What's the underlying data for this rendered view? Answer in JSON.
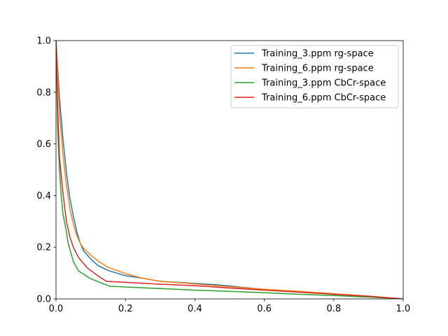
{
  "chart_data": {
    "type": "line",
    "title": "",
    "xlabel": "",
    "ylabel": "",
    "xlim": [
      0.0,
      1.0
    ],
    "ylim": [
      0.0,
      1.0
    ],
    "xticks": [
      "0.0",
      "0.2",
      "0.4",
      "0.6",
      "0.8",
      "1.0"
    ],
    "yticks": [
      "0.0",
      "0.2",
      "0.4",
      "0.6",
      "0.8",
      "1.0"
    ],
    "grid": false,
    "legend_position": "top-right",
    "series": [
      {
        "name": "Training_3.ppm rg-space",
        "color": "#1f77b4",
        "points": [
          [
            0.0,
            1.0
          ],
          [
            0.01,
            0.78
          ],
          [
            0.02,
            0.62
          ],
          [
            0.03,
            0.49
          ],
          [
            0.04,
            0.39
          ],
          [
            0.05,
            0.32
          ],
          [
            0.06,
            0.26
          ],
          [
            0.07,
            0.215
          ],
          [
            0.08,
            0.185
          ],
          [
            0.1,
            0.155
          ],
          [
            0.12,
            0.13
          ],
          [
            0.15,
            0.11
          ],
          [
            0.2,
            0.09
          ],
          [
            0.25,
            0.08
          ],
          [
            0.3,
            0.068
          ],
          [
            0.35,
            0.064
          ],
          [
            0.4,
            0.06
          ],
          [
            0.45,
            0.056
          ],
          [
            0.5,
            0.05
          ],
          [
            0.55,
            0.043
          ],
          [
            0.6,
            0.037
          ],
          [
            0.7,
            0.027
          ],
          [
            0.8,
            0.018
          ],
          [
            0.9,
            0.01
          ],
          [
            1.0,
            0.0
          ]
        ]
      },
      {
        "name": "Training_6.ppm rg-space",
        "color": "#ff7f0e",
        "points": [
          [
            0.0,
            1.0
          ],
          [
            0.01,
            0.72
          ],
          [
            0.02,
            0.56
          ],
          [
            0.03,
            0.44
          ],
          [
            0.04,
            0.35
          ],
          [
            0.05,
            0.29
          ],
          [
            0.06,
            0.245
          ],
          [
            0.07,
            0.215
          ],
          [
            0.08,
            0.195
          ],
          [
            0.1,
            0.17
          ],
          [
            0.12,
            0.148
          ],
          [
            0.15,
            0.122
          ],
          [
            0.2,
            0.098
          ],
          [
            0.25,
            0.08
          ],
          [
            0.3,
            0.068
          ],
          [
            0.35,
            0.063
          ],
          [
            0.4,
            0.058
          ],
          [
            0.45,
            0.052
          ],
          [
            0.5,
            0.047
          ],
          [
            0.55,
            0.042
          ],
          [
            0.6,
            0.037
          ],
          [
            0.7,
            0.029
          ],
          [
            0.8,
            0.02
          ],
          [
            0.9,
            0.011
          ],
          [
            1.0,
            0.0
          ]
        ]
      },
      {
        "name": "Training_3.ppm CbCr-space",
        "color": "#2ca02c",
        "points": [
          [
            0.0,
            1.0
          ],
          [
            0.005,
            0.65
          ],
          [
            0.01,
            0.5
          ],
          [
            0.015,
            0.4
          ],
          [
            0.02,
            0.33
          ],
          [
            0.03,
            0.26
          ],
          [
            0.035,
            0.215
          ],
          [
            0.05,
            0.145
          ],
          [
            0.065,
            0.108
          ],
          [
            0.1,
            0.078
          ],
          [
            0.155,
            0.049
          ],
          [
            0.2,
            0.046
          ],
          [
            0.3,
            0.04
          ],
          [
            0.4,
            0.034
          ],
          [
            0.5,
            0.029
          ],
          [
            0.6,
            0.024
          ],
          [
            0.7,
            0.018
          ],
          [
            0.8,
            0.013
          ],
          [
            0.9,
            0.007
          ],
          [
            1.0,
            0.0
          ]
        ]
      },
      {
        "name": "Training_6.ppm CbCr-space",
        "color": "#d62728",
        "points": [
          [
            0.0,
            1.0
          ],
          [
            0.005,
            0.73
          ],
          [
            0.01,
            0.55
          ],
          [
            0.02,
            0.41
          ],
          [
            0.03,
            0.3
          ],
          [
            0.04,
            0.24
          ],
          [
            0.05,
            0.2
          ],
          [
            0.065,
            0.16
          ],
          [
            0.09,
            0.12
          ],
          [
            0.12,
            0.09
          ],
          [
            0.145,
            0.068
          ],
          [
            0.2,
            0.064
          ],
          [
            0.3,
            0.057
          ],
          [
            0.4,
            0.051
          ],
          [
            0.5,
            0.042
          ],
          [
            0.6,
            0.034
          ],
          [
            0.7,
            0.026
          ],
          [
            0.8,
            0.018
          ],
          [
            0.9,
            0.01
          ],
          [
            1.0,
            0.0
          ]
        ]
      }
    ]
  }
}
